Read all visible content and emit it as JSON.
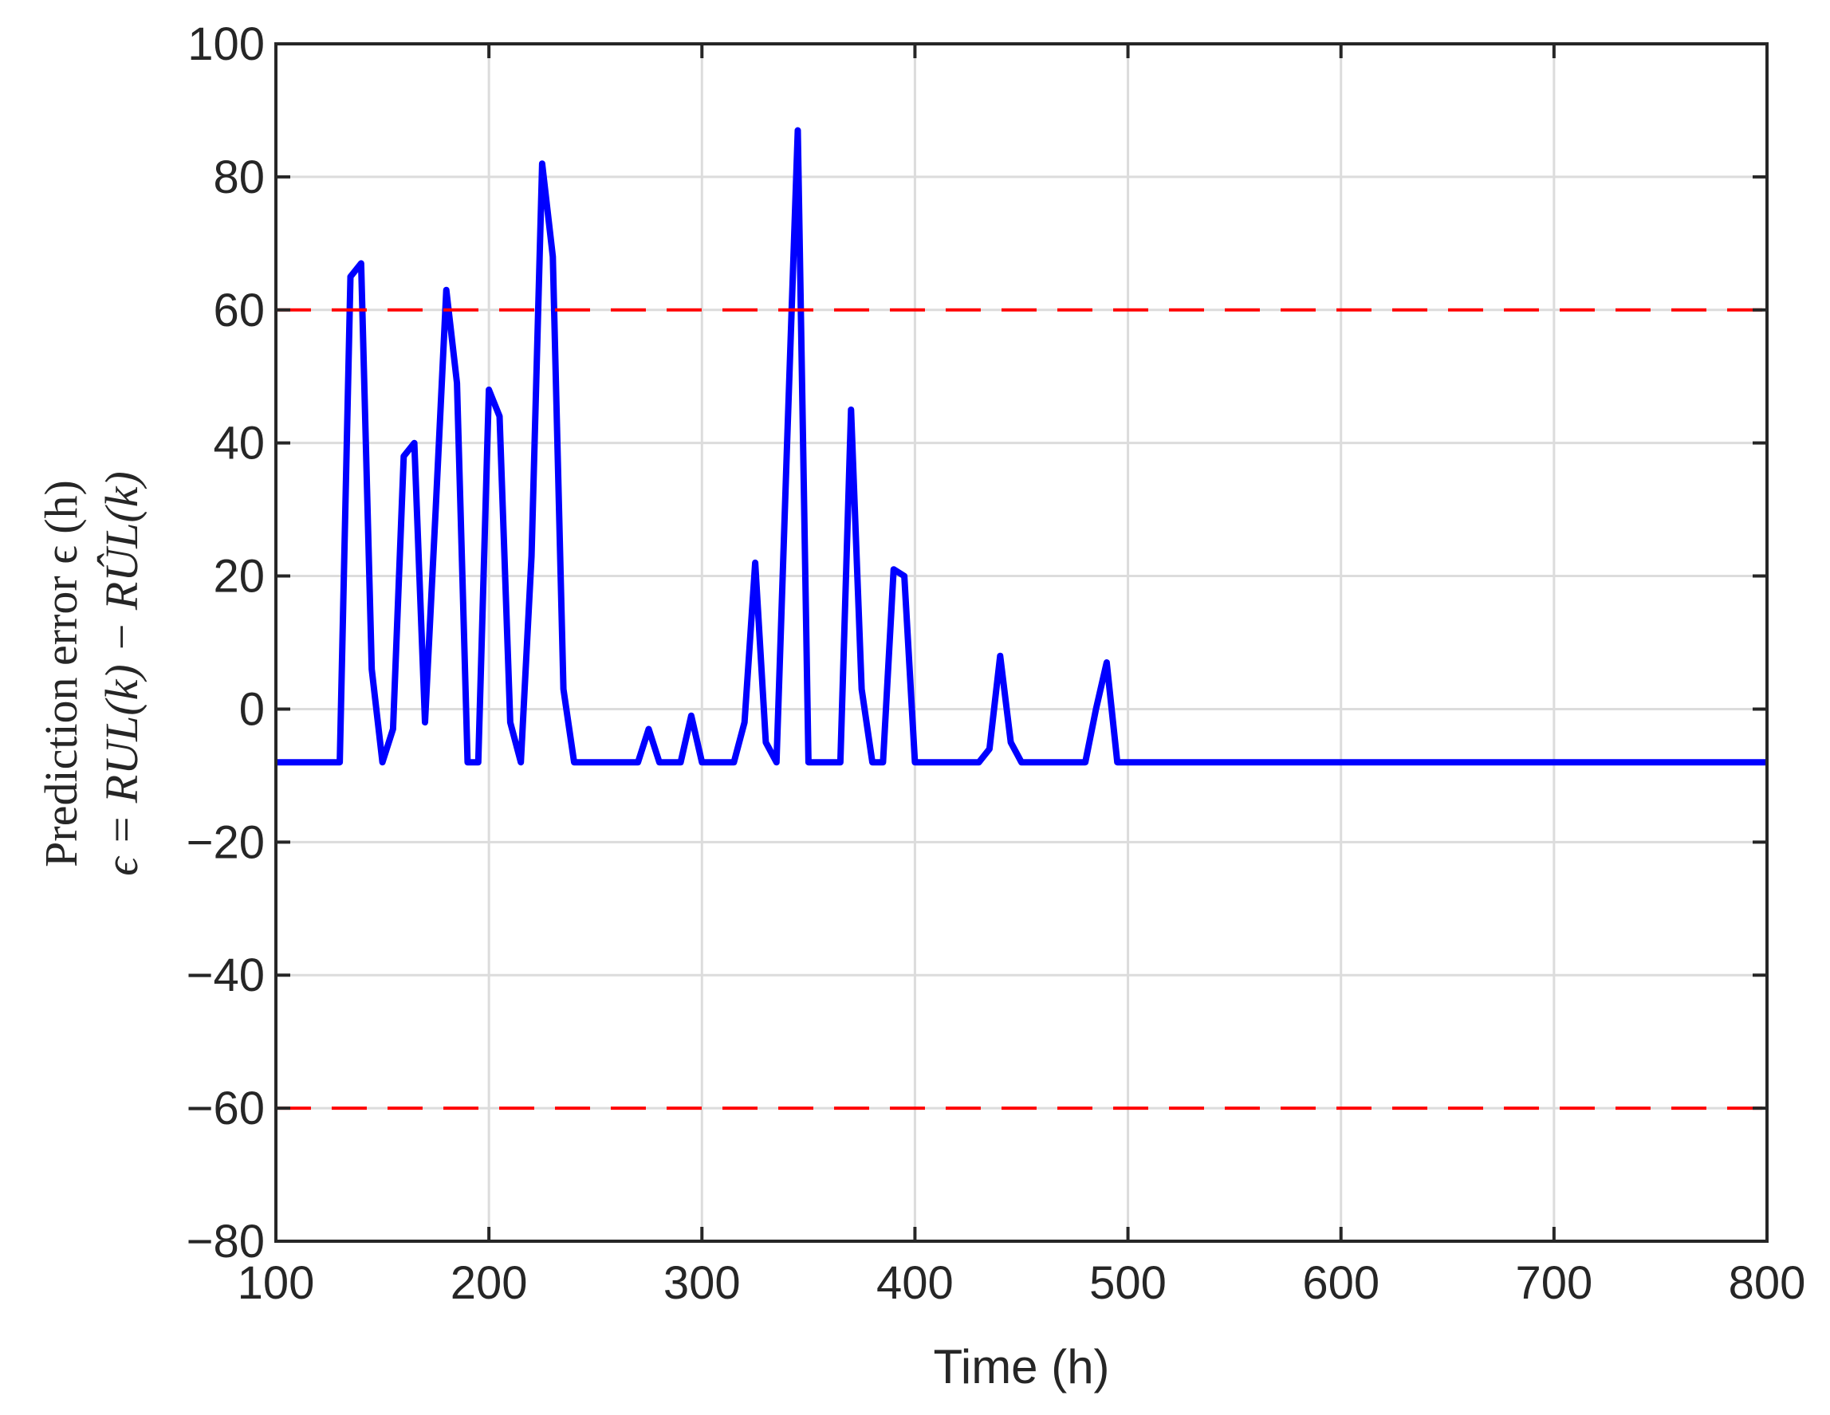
{
  "chart_data": {
    "type": "line",
    "title": "",
    "xlabel": "Time (h)",
    "ylabel_line1": "Prediction error ϵ (h)",
    "ylabel_line2": "ϵ = RUL(k) − RÛL(k)",
    "xlim": [
      100,
      800
    ],
    "ylim": [
      -80,
      100
    ],
    "xticks": [
      100,
      200,
      300,
      400,
      500,
      600,
      700,
      800
    ],
    "yticks": [
      -80,
      -60,
      -40,
      -20,
      0,
      20,
      40,
      60,
      80,
      100
    ],
    "ytick_labels": [
      "−80",
      "−60",
      "−40",
      "−20",
      "0",
      "20",
      "40",
      "60",
      "80",
      "100"
    ],
    "grid": true,
    "legend": "none",
    "series": [
      {
        "color": "#0000ff",
        "style": "solid",
        "x": [
          100,
          130,
          135,
          140,
          145,
          150,
          155,
          160,
          165,
          170,
          175,
          180,
          185,
          190,
          195,
          200,
          205,
          210,
          215,
          220,
          225,
          230,
          235,
          240,
          245,
          250,
          255,
          260,
          265,
          270,
          275,
          280,
          285,
          290,
          295,
          300,
          305,
          310,
          315,
          320,
          325,
          330,
          335,
          340,
          345,
          350,
          355,
          360,
          365,
          370,
          375,
          380,
          385,
          390,
          395,
          400,
          405,
          410,
          415,
          420,
          425,
          430,
          435,
          440,
          445,
          450,
          455,
          460,
          465,
          470,
          475,
          480,
          485,
          490,
          495,
          800
        ],
        "y": [
          -8,
          -8,
          65,
          67,
          6,
          -8,
          -3,
          38,
          40,
          -2,
          30,
          63,
          49,
          -8,
          -8,
          48,
          44,
          -2,
          -8,
          23,
          82,
          68,
          3,
          -8,
          -8,
          -8,
          -8,
          -8,
          -8,
          -8,
          -3,
          -8,
          -8,
          -8,
          -1,
          -8,
          -8,
          -8,
          -8,
          -2,
          22,
          -5,
          -8,
          40,
          87,
          -8,
          -8,
          -8,
          -8,
          45,
          3,
          -8,
          -8,
          21,
          20,
          -8,
          -8,
          -8,
          -8,
          -8,
          -8,
          -8,
          -6,
          8,
          -5,
          -8,
          -8,
          -8,
          -8,
          -8,
          -8,
          -8,
          0,
          7,
          -8,
          -8
        ]
      },
      {
        "color": "#ff0000",
        "style": "dashed",
        "x": [
          100,
          800
        ],
        "y": [
          60,
          60
        ]
      },
      {
        "color": "#ff0000",
        "style": "dashed",
        "x": [
          100,
          800
        ],
        "y": [
          -60,
          -60
        ]
      }
    ]
  }
}
